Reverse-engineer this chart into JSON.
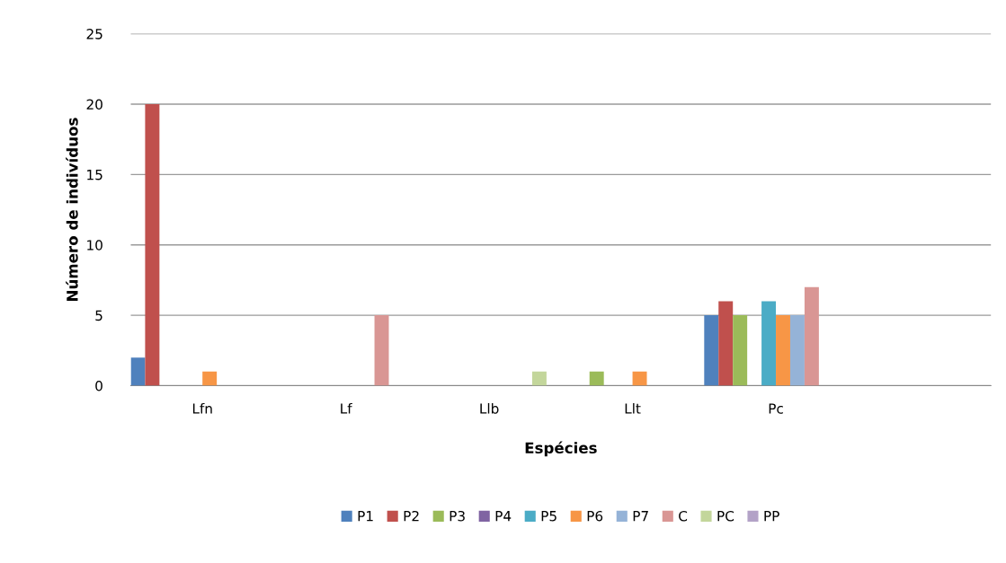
{
  "chart_data": {
    "type": "bar",
    "xlabel": "Espécies",
    "ylabel": "Número de indivíduos",
    "categories": [
      "Lfn",
      "Lf",
      "Llb",
      "Llt",
      "Pc",
      null
    ],
    "series": [
      {
        "name": "P1",
        "color": "#4f81bd",
        "values": [
          2,
          0,
          0,
          0,
          5,
          0
        ]
      },
      {
        "name": "P2",
        "color": "#c0504d",
        "values": [
          20,
          0,
          0,
          0,
          6,
          0
        ]
      },
      {
        "name": "P3",
        "color": "#9bbb59",
        "values": [
          0,
          0,
          0,
          1,
          5,
          0
        ]
      },
      {
        "name": "P4",
        "color": "#8064a2",
        "values": [
          0,
          0,
          0,
          0,
          0,
          0
        ]
      },
      {
        "name": "P5",
        "color": "#4bacc6",
        "values": [
          0,
          0,
          0,
          0,
          6,
          0
        ]
      },
      {
        "name": "P6",
        "color": "#f79646",
        "values": [
          1,
          0,
          0,
          1,
          5,
          0
        ]
      },
      {
        "name": "P7",
        "color": "#95b3d7",
        "values": [
          0,
          0,
          0,
          0,
          5,
          0
        ]
      },
      {
        "name": "C",
        "color": "#d99694",
        "values": [
          0,
          5,
          0,
          0,
          7,
          0
        ]
      },
      {
        "name": "PC",
        "color": "#c3d69b",
        "values": [
          0,
          0,
          1,
          0,
          0,
          0
        ]
      },
      {
        "name": "PP",
        "color": "#b3a2c7",
        "values": [
          0,
          0,
          0,
          0,
          0,
          0
        ]
      }
    ],
    "ylim": [
      0,
      25
    ],
    "yticks": [
      0,
      5,
      10,
      15,
      20,
      25
    ],
    "grid": "y",
    "legend": "bottom"
  }
}
